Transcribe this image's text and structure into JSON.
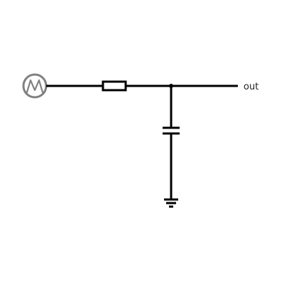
{
  "circuit": {
    "components": [
      {
        "type": "ac-voltage-source"
      },
      {
        "type": "resistor"
      },
      {
        "type": "capacitor"
      },
      {
        "type": "ground"
      }
    ],
    "output_label": "out",
    "colors": {
      "wire": "#000000",
      "source": "#808080",
      "background": "#ffffff"
    }
  }
}
